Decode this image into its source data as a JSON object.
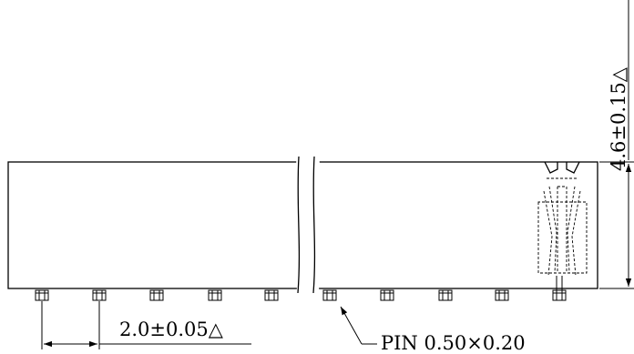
{
  "dimensions": {
    "height": "4.6±0.15△",
    "pitch": "2.0±0.05△",
    "pin": "PIN 0.50×0.20"
  },
  "pins": {
    "left_count": 5,
    "right_count": 5
  }
}
